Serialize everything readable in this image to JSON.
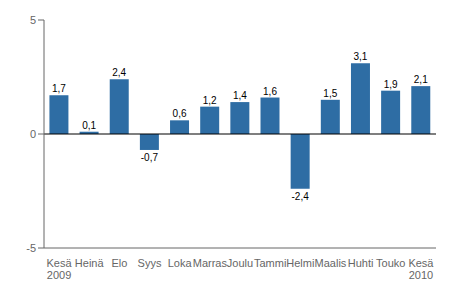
{
  "chart_data": {
    "type": "bar",
    "categories": [
      "Kesä\n2009",
      "Heinä",
      "Elo",
      "Syys",
      "Loka",
      "Marras",
      "Joulu",
      "Tammi",
      "Helmi",
      "Maalis",
      "Huhti",
      "Touko",
      "Kesä\n2010"
    ],
    "values": [
      1.7,
      0.1,
      2.4,
      -0.7,
      0.6,
      1.2,
      1.4,
      1.6,
      -2.4,
      1.5,
      3.1,
      1.9,
      2.1
    ],
    "value_labels": [
      "1,7",
      "0,1",
      "2,4",
      "-0,7",
      "0,6",
      "1,2",
      "1,4",
      "1,6",
      "-2,4",
      "1,5",
      "3,1",
      "1,9",
      "2,1"
    ],
    "color": "#2E6DA4",
    "ylim": [
      -5,
      5
    ],
    "yticks": [
      -5,
      0,
      5
    ],
    "grid": false
  }
}
